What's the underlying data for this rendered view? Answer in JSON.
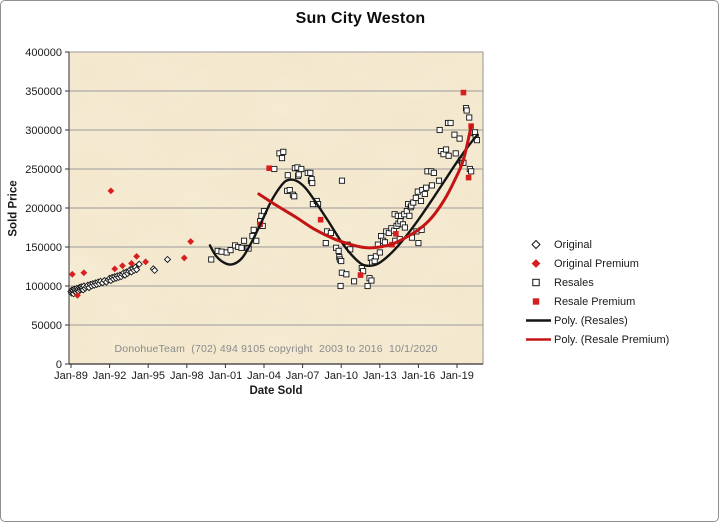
{
  "title": "Sun City Weston",
  "watermark": "DonohueTeam  (702) 494 9105 copyright  2003 to 2016  10/1/2020",
  "axes": {
    "x": {
      "title": "Date Sold",
      "tick_labels": [
        "Jan-89",
        "Jan-92",
        "Jan-95",
        "Jan-98",
        "Jan-01",
        "Jan-04",
        "Jan-07",
        "Jan-10",
        "Jan-13",
        "Jan-16",
        "Jan-19"
      ],
      "tick_years": [
        1989,
        1992,
        1995,
        1998,
        2001,
        2004,
        2007,
        2010,
        2013,
        2016,
        2019
      ]
    },
    "y": {
      "title": "Sold Price",
      "min": 0,
      "max": 400000,
      "tick_step": 50000,
      "tick_labels": [
        "0",
        "50000",
        "100000",
        "150000",
        "200000",
        "250000",
        "300000",
        "350000",
        "400000"
      ]
    }
  },
  "colors": {
    "plot_bg": "#f6ecd4",
    "gridline": "#9b9b9b",
    "axis": "#333333",
    "marker_black": "#141414",
    "marker_fill": "#ffffff",
    "marker_red": "#d81f1f",
    "poly_resales": "#141414",
    "poly_resale_premium": "#c41414",
    "watermark": "#8a8a8a"
  },
  "legend": {
    "items": [
      {
        "label": "Original",
        "marker": "open-diamond"
      },
      {
        "label": "Original Premium",
        "marker": "filled-diamond"
      },
      {
        "label": "Resales",
        "marker": "open-square"
      },
      {
        "label": "Resale Premium",
        "marker": "filled-square"
      },
      {
        "label": "Poly. (Resales)",
        "marker": "line",
        "color": "#141414"
      },
      {
        "label": "Poly. (Resale Premium)",
        "marker": "line",
        "color": "#c41414"
      }
    ]
  },
  "chart_data": {
    "type": "scatter",
    "title": "Sun City Weston",
    "xlabel": "Date Sold",
    "ylabel": "Sold Price",
    "x_unit": "decimal_year",
    "xlim": [
      1988.8,
      2021.0
    ],
    "ylim": [
      0,
      400000
    ],
    "grid": true,
    "legend_position": "right",
    "series": [
      {
        "name": "Original",
        "marker": "open-diamond",
        "color": "#141414",
        "points": [
          [
            1989.0,
            93000
          ],
          [
            1989.04,
            91000
          ],
          [
            1989.08,
            95000
          ],
          [
            1989.12,
            92000
          ],
          [
            1989.16,
            94000
          ],
          [
            1989.2,
            90000
          ],
          [
            1989.25,
            96000
          ],
          [
            1989.3,
            93000
          ],
          [
            1989.35,
            95000
          ],
          [
            1989.4,
            92000
          ],
          [
            1989.45,
            97000
          ],
          [
            1989.5,
            94000
          ],
          [
            1989.55,
            96000
          ],
          [
            1989.6,
            93000
          ],
          [
            1989.65,
            98000
          ],
          [
            1989.7,
            95000
          ],
          [
            1989.75,
            97000
          ],
          [
            1989.8,
            99000
          ],
          [
            1989.85,
            96000
          ],
          [
            1989.9,
            98000
          ],
          [
            1989.95,
            95000
          ],
          [
            1990.0,
            100000
          ],
          [
            1990.1,
            97000
          ],
          [
            1990.2,
            99000
          ],
          [
            1990.3,
            101000
          ],
          [
            1990.4,
            98000
          ],
          [
            1990.5,
            102000
          ],
          [
            1990.6,
            100000
          ],
          [
            1990.7,
            103000
          ],
          [
            1990.8,
            101000
          ],
          [
            1990.9,
            104000
          ],
          [
            1991.0,
            102000
          ],
          [
            1991.1,
            105000
          ],
          [
            1991.2,
            103000
          ],
          [
            1991.3,
            106000
          ],
          [
            1991.45,
            104000
          ],
          [
            1991.6,
            107000
          ],
          [
            1991.75,
            105000
          ],
          [
            1991.9,
            108000
          ],
          [
            1992.0,
            110000
          ],
          [
            1992.1,
            107000
          ],
          [
            1992.2,
            111000
          ],
          [
            1992.3,
            109000
          ],
          [
            1992.4,
            112000
          ],
          [
            1992.5,
            110000
          ],
          [
            1992.6,
            113000
          ],
          [
            1992.7,
            111000
          ],
          [
            1992.8,
            114000
          ],
          [
            1992.9,
            112000
          ],
          [
            1993.0,
            115000
          ],
          [
            1993.1,
            117000
          ],
          [
            1993.2,
            114000
          ],
          [
            1993.3,
            118000
          ],
          [
            1993.4,
            116000
          ],
          [
            1993.5,
            119000
          ],
          [
            1993.6,
            121000
          ],
          [
            1993.7,
            118000
          ],
          [
            1993.8,
            122000
          ],
          [
            1993.9,
            120000
          ],
          [
            1994.0,
            124000
          ],
          [
            1994.1,
            121000
          ],
          [
            1994.3,
            128000
          ],
          [
            1995.4,
            122000
          ],
          [
            1995.5,
            120000
          ],
          [
            1996.5,
            134000
          ]
        ]
      },
      {
        "name": "Original Premium",
        "marker": "filled-diamond",
        "color": "#d81f1f",
        "points": [
          [
            1989.1,
            115000
          ],
          [
            1989.5,
            88000
          ],
          [
            1990.0,
            117000
          ],
          [
            1992.1,
            222000
          ],
          [
            1992.4,
            122000
          ],
          [
            1993.0,
            126000
          ],
          [
            1993.7,
            129000
          ],
          [
            1994.1,
            138000
          ],
          [
            1994.8,
            131000
          ],
          [
            1997.8,
            136000
          ],
          [
            1998.3,
            157000
          ]
        ]
      },
      {
        "name": "Resales",
        "marker": "open-square",
        "color": "#141414",
        "points": [
          [
            1999.9,
            134000
          ],
          [
            2000.4,
            145000
          ],
          [
            2000.7,
            144000
          ],
          [
            2001.1,
            143000
          ],
          [
            2001.4,
            146000
          ],
          [
            2001.75,
            152000
          ],
          [
            2002.0,
            150000
          ],
          [
            2002.25,
            149000
          ],
          [
            2002.45,
            158000
          ],
          [
            2002.7,
            149000
          ],
          [
            2002.8,
            148000
          ],
          [
            2003.1,
            164000
          ],
          [
            2003.2,
            172000
          ],
          [
            2003.4,
            158000
          ],
          [
            2003.7,
            183000
          ],
          [
            2003.8,
            190000
          ],
          [
            2003.9,
            177000
          ],
          [
            2004.0,
            196000
          ],
          [
            2004.8,
            250000
          ],
          [
            2005.2,
            270000
          ],
          [
            2005.4,
            264000
          ],
          [
            2005.5,
            272000
          ],
          [
            2005.8,
            222000
          ],
          [
            2005.85,
            242000
          ],
          [
            2006.0,
            223000
          ],
          [
            2006.25,
            217000
          ],
          [
            2006.35,
            215000
          ],
          [
            2006.4,
            251000
          ],
          [
            2006.6,
            252000
          ],
          [
            2006.65,
            241000
          ],
          [
            2006.7,
            243000
          ],
          [
            2006.9,
            250000
          ],
          [
            2007.4,
            245000
          ],
          [
            2007.6,
            245000
          ],
          [
            2007.65,
            235000
          ],
          [
            2007.7,
            237000
          ],
          [
            2007.75,
            232000
          ],
          [
            2007.8,
            205000
          ],
          [
            2008.1,
            209000
          ],
          [
            2008.2,
            205000
          ],
          [
            2008.8,
            155000
          ],
          [
            2008.9,
            170000
          ],
          [
            2009.2,
            168000
          ],
          [
            2009.6,
            149000
          ],
          [
            2009.8,
            145000
          ],
          [
            2009.85,
            137000
          ],
          [
            2009.9,
            134000
          ],
          [
            2009.95,
            100000
          ],
          [
            2010.0,
            132000
          ],
          [
            2010.05,
            117000
          ],
          [
            2010.06,
            235000
          ],
          [
            2010.4,
            115000
          ],
          [
            2010.5,
            153000
          ],
          [
            2010.7,
            147000
          ],
          [
            2011.0,
            106000
          ],
          [
            2011.6,
            123000
          ],
          [
            2011.7,
            119000
          ],
          [
            2012.05,
            100000
          ],
          [
            2012.2,
            110000
          ],
          [
            2012.3,
            136000
          ],
          [
            2012.35,
            107000
          ],
          [
            2012.4,
            130000
          ],
          [
            2012.6,
            132000
          ],
          [
            2012.7,
            138000
          ],
          [
            2012.85,
            153000
          ],
          [
            2013.0,
            143000
          ],
          [
            2013.1,
            164000
          ],
          [
            2013.25,
            158000
          ],
          [
            2013.4,
            156000
          ],
          [
            2013.5,
            170000
          ],
          [
            2013.7,
            168000
          ],
          [
            2013.9,
            174000
          ],
          [
            2014.1,
            171000
          ],
          [
            2014.15,
            192000
          ],
          [
            2014.2,
            158000
          ],
          [
            2014.3,
            177000
          ],
          [
            2014.4,
            190000
          ],
          [
            2014.45,
            180000
          ],
          [
            2014.55,
            160000
          ],
          [
            2014.6,
            183000
          ],
          [
            2014.65,
            190000
          ],
          [
            2014.8,
            179000
          ],
          [
            2014.9,
            192000
          ],
          [
            2014.95,
            175000
          ],
          [
            2015.1,
            196000
          ],
          [
            2015.2,
            205000
          ],
          [
            2015.3,
            190000
          ],
          [
            2015.4,
            201000
          ],
          [
            2015.45,
            203000
          ],
          [
            2015.5,
            162000
          ],
          [
            2015.6,
            207000
          ],
          [
            2015.8,
            213000
          ],
          [
            2015.85,
            170000
          ],
          [
            2015.95,
            221000
          ],
          [
            2016.0,
            155000
          ],
          [
            2016.2,
            209000
          ],
          [
            2016.25,
            172000
          ],
          [
            2016.3,
            223000
          ],
          [
            2016.5,
            218000
          ],
          [
            2016.6,
            226000
          ],
          [
            2016.7,
            247000
          ],
          [
            2017.0,
            247000
          ],
          [
            2017.05,
            229000
          ],
          [
            2017.2,
            245000
          ],
          [
            2017.6,
            235000
          ],
          [
            2017.65,
            300000
          ],
          [
            2017.75,
            273000
          ],
          [
            2017.95,
            269000
          ],
          [
            2018.15,
            275000
          ],
          [
            2018.3,
            309000
          ],
          [
            2018.35,
            267000
          ],
          [
            2018.5,
            309000
          ],
          [
            2018.8,
            294000
          ],
          [
            2018.9,
            270000
          ],
          [
            2019.2,
            289000
          ],
          [
            2019.3,
            261000
          ],
          [
            2019.4,
            258000
          ],
          [
            2019.5,
            258000
          ],
          [
            2019.7,
            328000
          ],
          [
            2019.75,
            325000
          ],
          [
            2019.95,
            316000
          ],
          [
            2020.0,
            250000
          ],
          [
            2020.1,
            247000
          ],
          [
            2020.3,
            296000
          ],
          [
            2020.4,
            297000
          ],
          [
            2020.45,
            291000
          ],
          [
            2020.55,
            287000
          ]
        ]
      },
      {
        "name": "Resale Premium",
        "marker": "filled-square",
        "color": "#d81f1f",
        "points": [
          [
            2003.7,
            179000
          ],
          [
            2004.4,
            251000
          ],
          [
            2008.4,
            185000
          ],
          [
            2011.5,
            114000
          ],
          [
            2013.95,
            153000
          ],
          [
            2014.25,
            167000
          ],
          [
            2019.5,
            348000
          ],
          [
            2019.9,
            239000
          ],
          [
            2020.1,
            305000
          ]
        ]
      },
      {
        "name": "Poly. (Resales)",
        "line": true,
        "color": "#141414",
        "points": [
          [
            1999.8,
            152000
          ],
          [
            2000.3,
            138000
          ],
          [
            2001.0,
            129000
          ],
          [
            2001.6,
            128000
          ],
          [
            2002.3,
            136000
          ],
          [
            2003.0,
            155000
          ],
          [
            2003.8,
            182000
          ],
          [
            2004.6,
            210000
          ],
          [
            2005.4,
            230000
          ],
          [
            2005.9,
            236000
          ],
          [
            2006.5,
            235000
          ],
          [
            2007.2,
            226000
          ],
          [
            2008.0,
            208000
          ],
          [
            2009.0,
            183000
          ],
          [
            2010.0,
            157000
          ],
          [
            2010.8,
            140000
          ],
          [
            2011.6,
            128000
          ],
          [
            2012.3,
            126000
          ],
          [
            2013.0,
            130000
          ],
          [
            2014.0,
            144000
          ],
          [
            2015.0,
            163000
          ],
          [
            2016.0,
            185000
          ],
          [
            2017.0,
            209000
          ],
          [
            2018.0,
            234000
          ],
          [
            2019.0,
            259000
          ],
          [
            2020.0,
            282000
          ],
          [
            2020.6,
            294000
          ]
        ]
      },
      {
        "name": "Poly. (Resale Premium)",
        "line": true,
        "color": "#c41414",
        "points": [
          [
            2003.6,
            218000
          ],
          [
            2005.0,
            203000
          ],
          [
            2006.5,
            188000
          ],
          [
            2008.0,
            172000
          ],
          [
            2009.5,
            160000
          ],
          [
            2011.0,
            152000
          ],
          [
            2012.0,
            149000
          ],
          [
            2013.0,
            150000
          ],
          [
            2014.0,
            154000
          ],
          [
            2015.0,
            162000
          ],
          [
            2016.0,
            172000
          ],
          [
            2017.0,
            187000
          ],
          [
            2018.0,
            210000
          ],
          [
            2018.8,
            235000
          ],
          [
            2019.5,
            262000
          ],
          [
            2020.1,
            305000
          ]
        ]
      }
    ]
  }
}
